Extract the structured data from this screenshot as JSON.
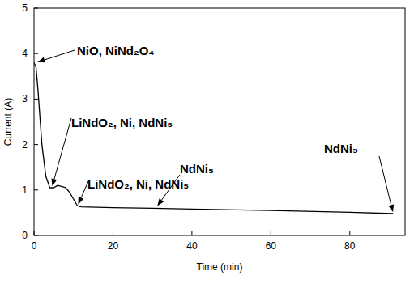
{
  "chart_data": {
    "type": "line",
    "x_label": "Time (min)",
    "y_label": "Current (A)",
    "x": [
      0,
      0.5,
      1,
      2,
      3,
      4,
      5,
      6,
      8,
      9,
      10,
      11,
      12,
      20,
      30,
      40,
      60,
      80,
      91
    ],
    "values": [
      3.8,
      3.7,
      3.2,
      2.0,
      1.3,
      1.05,
      1.05,
      1.1,
      1.05,
      0.95,
      0.8,
      0.65,
      0.63,
      0.61,
      0.6,
      0.58,
      0.55,
      0.51,
      0.48
    ],
    "color": "#000000",
    "xlim": [
      0,
      94
    ],
    "xticks": [
      0,
      20,
      40,
      60,
      80
    ],
    "ylim": [
      0,
      5
    ],
    "yticks": [
      0,
      1,
      2,
      3,
      4,
      5
    ],
    "grid": false,
    "annotations": [
      {
        "text": "NiO, NiNd₂O₄",
        "x": 0.5,
        "y": 3.8
      },
      {
        "text": "LiNdO₂, Ni, NdNi₅",
        "x": 4.5,
        "y": 1.05
      },
      {
        "text": "LiNdO₂, Ni, NdNi₅",
        "x": 11,
        "y": 0.65
      },
      {
        "text": "NdNi₅",
        "x": 31,
        "y": 0.62
      },
      {
        "text": "NdNi₅",
        "x": 91,
        "y": 0.48
      }
    ]
  }
}
